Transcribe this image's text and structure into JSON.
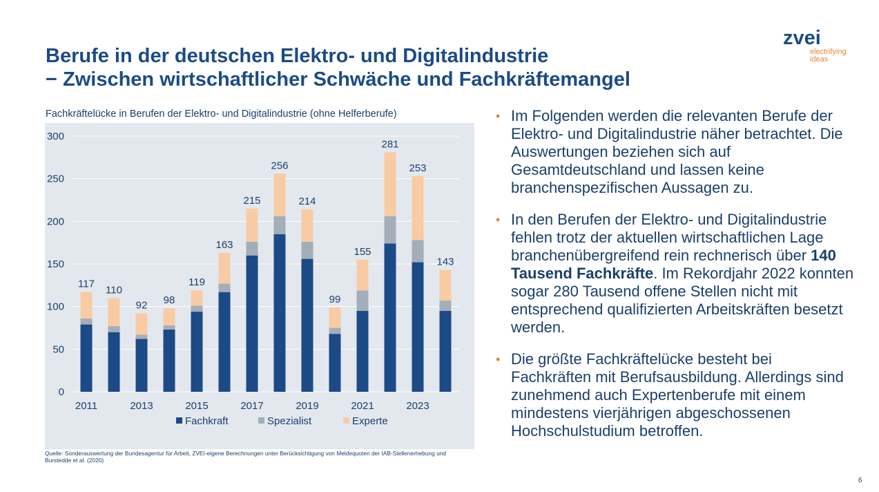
{
  "slide": {
    "title_line1": "Berufe in der deutschen Elektro- und Digitalindustrie",
    "title_line2": "− Zwischen wirtschaftlicher Schwäche und Fachkräftemangel",
    "logo_word": "zvei",
    "logo_tag_line1": "electrifying",
    "logo_tag_line2": "ideas",
    "page_number": "6",
    "source": "Quelle: Sonderauswertung der Bundesagentur für Arbeit, ZVEI-eigene Berechnungen unter Berücksichtigung von Meldequoten der IAB-Stellenerhebung und Burstedde et al. (2020)"
  },
  "bullets": [
    {
      "text": "Im Folgenden werden die relevanten Berufe der Elektro- und Digitalindustrie näher betrachtet. Die Auswertungen beziehen sich auf Gesamtdeutschland und lassen keine branchenspezifischen Aussagen zu."
    },
    {
      "pre": "In den Berufen der Elektro- und Digitalindustrie fehlen trotz der aktuellen wirtschaftlichen Lage branchenübergreifend rein rechnerisch über ",
      "bold": "140 Tausend Fachkräfte",
      "post": ". Im Rekordjahr 2022 konnten sogar 280 Tausend offene Stellen nicht mit entsprechend qualifizierten Arbeitskräften besetzt werden."
    },
    {
      "text": "Die größte Fachkräftelücke besteht bei Fachkräften mit Berufsausbildung. Allerdings sind zunehmend auch Expertenberufe mit einem mindestens vierjährigen abgeschossenen Hochschulstudium betroffen."
    }
  ],
  "chart_data": {
    "type": "bar",
    "stacked": true,
    "title": "Fachkräftelücke in Berufen der Elektro- und Digitalindustrie (ohne Helferberufe)",
    "categories": [
      "2011",
      "2012",
      "2013",
      "2014",
      "2015",
      "2016",
      "2017",
      "2018",
      "2019",
      "2020",
      "2021",
      "2022",
      "2023",
      "2024"
    ],
    "tick_labels": [
      "2011",
      "",
      "2013",
      "",
      "2015",
      "",
      "2017",
      "",
      "2019",
      "",
      "2021",
      "",
      "2023",
      ""
    ],
    "series": [
      {
        "name": "Fachkraft",
        "color": "#1c4a87",
        "values": [
          79,
          70,
          62,
          73,
          94,
          117,
          160,
          185,
          156,
          68,
          95,
          174,
          152,
          95
        ]
      },
      {
        "name": "Spezialist",
        "color": "#a4aeb8",
        "values": [
          7,
          7,
          5,
          5,
          7,
          10,
          16,
          21,
          20,
          7,
          24,
          32,
          26,
          12
        ]
      },
      {
        "name": "Experte",
        "color": "#f8cba4",
        "values": [
          31,
          33,
          25,
          20,
          18,
          36,
          39,
          50,
          38,
          24,
          36,
          75,
          75,
          36
        ]
      }
    ],
    "totals": [
      117,
      110,
      92,
      98,
      119,
      163,
      215,
      256,
      214,
      99,
      155,
      281,
      253,
      143
    ],
    "ylim": [
      0,
      300
    ],
    "yticks": [
      0,
      50,
      100,
      150,
      200,
      250,
      300
    ],
    "legend_position": "bottom",
    "grid": true
  }
}
